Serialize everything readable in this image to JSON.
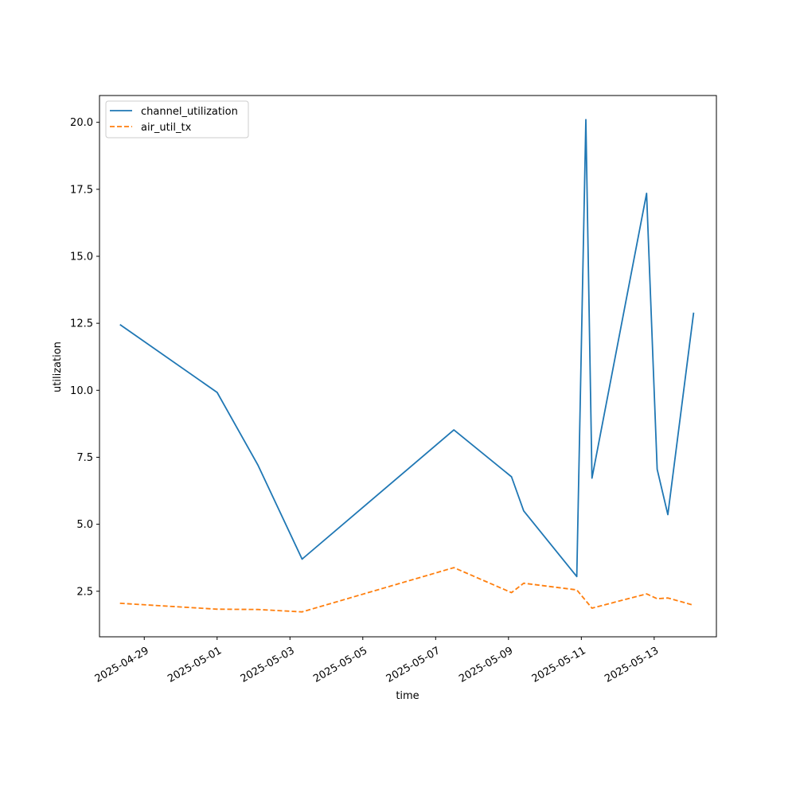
{
  "chart_data": {
    "type": "line",
    "title": "",
    "xlabel": "time",
    "ylabel": "utilization",
    "x_type": "date",
    "xlim": [
      "2025-04-27 18:30",
      "2025-05-14 17:00"
    ],
    "ylim": [
      0.8,
      21.0
    ],
    "grid": false,
    "legend_position": "top-left",
    "x_ticks": [
      "2025-04-29",
      "2025-05-01",
      "2025-05-03",
      "2025-05-05",
      "2025-05-07",
      "2025-05-09",
      "2025-05-11",
      "2025-05-13"
    ],
    "y_ticks": [
      2.5,
      5.0,
      7.5,
      10.0,
      12.5,
      15.0,
      17.5,
      20.0
    ],
    "series": [
      {
        "name": "channel_utilization",
        "color": "#1f77b4",
        "style": "solid",
        "points": [
          [
            "2025-04-28 08:00",
            12.45
          ],
          [
            "2025-05-01 00:00",
            9.92
          ],
          [
            "2025-05-02 03:00",
            7.2
          ],
          [
            "2025-05-03 08:00",
            3.7
          ],
          [
            "2025-05-07 12:00",
            8.52
          ],
          [
            "2025-05-09 02:00",
            6.77
          ],
          [
            "2025-05-09 10:00",
            5.5
          ],
          [
            "2025-05-10 21:00",
            3.05
          ],
          [
            "2025-05-11 03:00",
            20.1
          ],
          [
            "2025-05-11 07:00",
            6.72
          ],
          [
            "2025-05-12 19:00",
            17.35
          ],
          [
            "2025-05-13 02:00",
            7.05
          ],
          [
            "2025-05-13 09:00",
            5.36
          ],
          [
            "2025-05-14 02:00",
            12.9
          ]
        ]
      },
      {
        "name": "air_util_tx",
        "color": "#ff7f0e",
        "style": "dashed",
        "points": [
          [
            "2025-04-28 08:00",
            2.05
          ],
          [
            "2025-05-01 00:00",
            1.83
          ],
          [
            "2025-05-02 03:00",
            1.82
          ],
          [
            "2025-05-03 08:00",
            1.73
          ],
          [
            "2025-05-07 12:00",
            3.38
          ],
          [
            "2025-05-09 02:00",
            2.45
          ],
          [
            "2025-05-09 10:00",
            2.8
          ],
          [
            "2025-05-10 21:00",
            2.55
          ],
          [
            "2025-05-11 07:00",
            1.87
          ],
          [
            "2025-05-12 19:00",
            2.4
          ],
          [
            "2025-05-13 02:00",
            2.22
          ],
          [
            "2025-05-13 09:00",
            2.25
          ],
          [
            "2025-05-14 02:00",
            1.98
          ]
        ]
      }
    ]
  }
}
